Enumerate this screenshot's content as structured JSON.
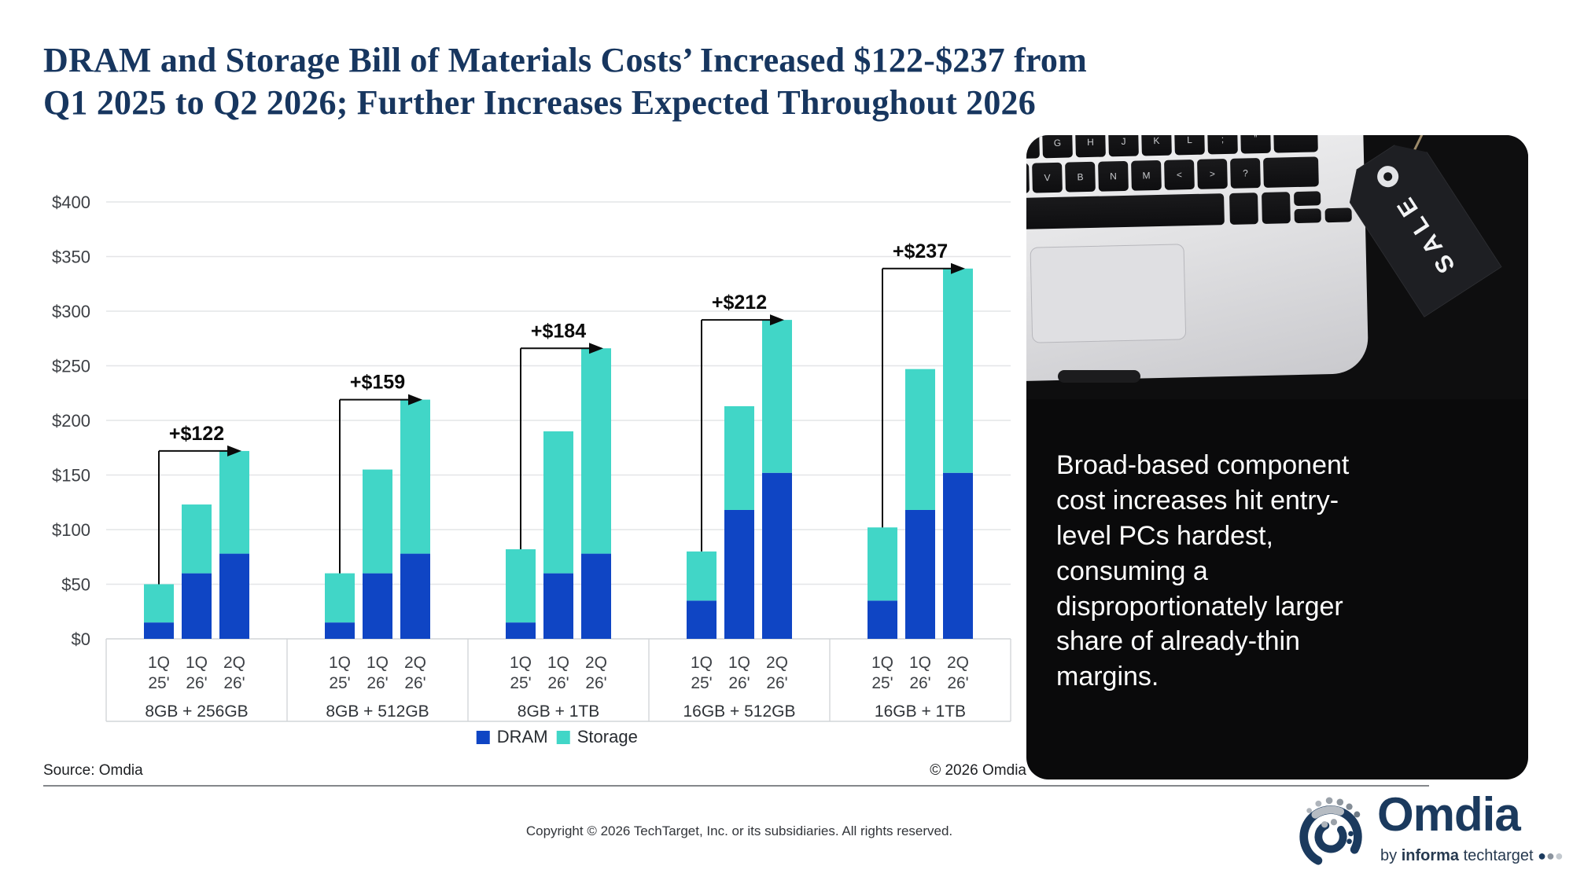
{
  "title": {
    "line1": "DRAM and Storage Bill of Materials Costs’ Increased $122-$237 from",
    "line2": "Q1 2025 to Q2 2026; Further Increases Expected Throughout 2026"
  },
  "chart_data": {
    "type": "bar",
    "stacked": true,
    "title": "",
    "xlabel": "",
    "ylabel": "",
    "ylim": [
      0,
      400
    ],
    "ytick_step": 50,
    "ytick_prefix": "$",
    "grid": true,
    "legend_position": "bottom",
    "legend": [
      {
        "label": "DRAM",
        "color": "#0f45c4"
      },
      {
        "label": "Storage",
        "color": "#41d6c7"
      }
    ],
    "bar_quarter_labels": [
      [
        "1Q",
        "25'"
      ],
      [
        "1Q",
        "26'"
      ],
      [
        "2Q",
        "26'"
      ]
    ],
    "groups": [
      {
        "label": "8GB + 256GB",
        "annotation": "+$122",
        "bars": [
          {
            "quarter": "1Q 25'",
            "DRAM": 15,
            "Storage": 35
          },
          {
            "quarter": "1Q 26'",
            "DRAM": 60,
            "Storage": 63
          },
          {
            "quarter": "2Q 26'",
            "DRAM": 78,
            "Storage": 94
          }
        ]
      },
      {
        "label": "8GB + 512GB",
        "annotation": "+$159",
        "bars": [
          {
            "quarter": "1Q 25'",
            "DRAM": 15,
            "Storage": 45
          },
          {
            "quarter": "1Q 26'",
            "DRAM": 60,
            "Storage": 95
          },
          {
            "quarter": "2Q 26'",
            "DRAM": 78,
            "Storage": 141
          }
        ]
      },
      {
        "label": "8GB + 1TB",
        "annotation": "+$184",
        "bars": [
          {
            "quarter": "1Q 25'",
            "DRAM": 15,
            "Storage": 67
          },
          {
            "quarter": "1Q 26'",
            "DRAM": 60,
            "Storage": 130
          },
          {
            "quarter": "2Q 26'",
            "DRAM": 78,
            "Storage": 188
          }
        ]
      },
      {
        "label": "16GB + 512GB",
        "annotation": "+$212",
        "bars": [
          {
            "quarter": "1Q 25'",
            "DRAM": 35,
            "Storage": 45
          },
          {
            "quarter": "1Q 26'",
            "DRAM": 118,
            "Storage": 95
          },
          {
            "quarter": "2Q 26'",
            "DRAM": 152,
            "Storage": 140
          }
        ]
      },
      {
        "label": "16GB + 1TB",
        "annotation": "+$237",
        "bars": [
          {
            "quarter": "1Q 25'",
            "DRAM": 35,
            "Storage": 67
          },
          {
            "quarter": "1Q 26'",
            "DRAM": 118,
            "Storage": 129
          },
          {
            "quarter": "2Q 26'",
            "DRAM": 152,
            "Storage": 187
          }
        ]
      }
    ]
  },
  "panel": {
    "quote_lines": [
      "Broad-based component",
      "cost increases hit entry-",
      "level PCs hardest,",
      "consuming a",
      "disproportionately larger",
      "share of already-thin",
      "margins."
    ],
    "sale_tag_text": "SALE",
    "keyboard": {
      "row1_labels": [
        "",
        "G",
        "H",
        "J",
        "K",
        "L",
        ";",
        "”",
        ""
      ],
      "row2_labels": [
        "",
        "V",
        "B",
        "N",
        "M",
        "<",
        ">",
        "?",
        ""
      ]
    }
  },
  "footer": {
    "source": "Source: Omdia",
    "chart_copyright": "© 2026 Omdia",
    "copyright": "Copyright © 2026 TechTarget, Inc. or its subsidiaries. All rights reserved."
  },
  "logo": {
    "wordmark": "Omdia",
    "byline_pre": "by",
    "byline_bold": "informa",
    "byline_post": "techtarget"
  },
  "colors": {
    "dram": "#0f45c4",
    "storage": "#41d6c7",
    "title_navy": "#17365f",
    "annotation": "#0b0b0b",
    "grid": "#e4e5e7",
    "axis_line": "#d2d5d8",
    "axis_text": "#3d4045"
  }
}
